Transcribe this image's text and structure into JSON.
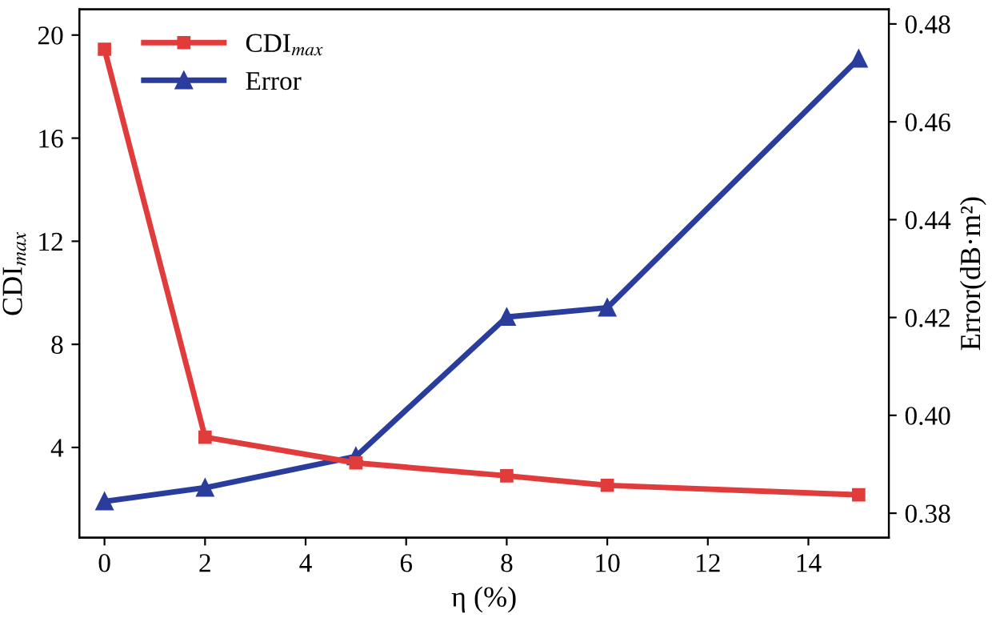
{
  "chart_data": {
    "type": "line",
    "xlabel": "η (%)",
    "ylabel": "CDI$_{max}$",
    "y2label": "Error(dB·m²)",
    "x": [
      0,
      2,
      5,
      8,
      10,
      15
    ],
    "series": [
      {
        "name": "CDI$_{max}$",
        "color": "#e03c3c",
        "marker": "square",
        "values": [
          19.45,
          4.4,
          3.4,
          2.9,
          2.53,
          2.16
        ]
      },
      {
        "name": "Error",
        "color": "#2b3d9c",
        "marker": "triangle",
        "axis": "y2",
        "values": [
          0.3824,
          0.3852,
          0.3916,
          0.4201,
          0.422,
          0.4729
        ]
      }
    ],
    "xlim": [
      -0.5,
      15.6
    ],
    "xticks": [
      0,
      2,
      4,
      6,
      8,
      10,
      12,
      14
    ],
    "ylim": [
      0.5,
      21
    ],
    "yticks": [
      4,
      8,
      12,
      16,
      20
    ],
    "y2lim": [
      0.375,
      0.483
    ],
    "y2ticks": [
      {
        "value": 0.38,
        "label": "0.38"
      },
      {
        "value": 0.4,
        "label": "0.40"
      },
      {
        "value": 0.42,
        "label": "0.42"
      },
      {
        "value": 0.44,
        "label": "0.44"
      },
      {
        "value": 0.46,
        "label": "0.46"
      },
      {
        "value": 0.48,
        "label": "0.48"
      }
    ],
    "grid": false,
    "legend": "top left",
    "line_style": "solid"
  }
}
